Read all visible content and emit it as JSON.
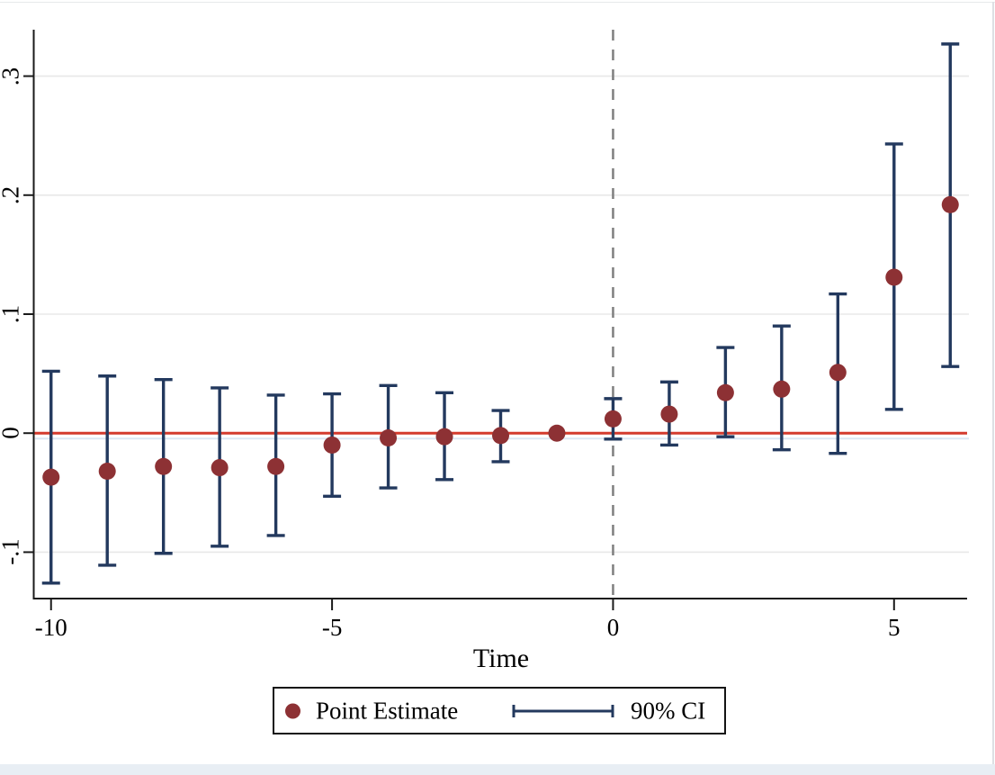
{
  "chart_data": {
    "type": "scatter",
    "subtype": "event-study-errorbar",
    "title": "",
    "xlabel": "Time",
    "ylabel": "",
    "xlim": [
      -10.3,
      6.3
    ],
    "ylim": [
      -0.139,
      0.339
    ],
    "x_ticks": [
      -10,
      -5,
      0,
      5
    ],
    "x_tick_labels": [
      "-10",
      "-5",
      "0",
      "5"
    ],
    "y_ticks": [
      -0.1,
      0,
      0.1,
      0.2,
      0.3
    ],
    "y_tick_labels": [
      "-.1",
      "0",
      ".1",
      ".2",
      ".3"
    ],
    "grid": true,
    "legend_position": "bottom-center",
    "reference_line_y": 0,
    "event_line_x": 0,
    "ci_level": "90%",
    "points": [
      {
        "x": -10,
        "estimate": -0.037,
        "ci_low": -0.126,
        "ci_high": 0.052
      },
      {
        "x": -9,
        "estimate": -0.032,
        "ci_low": -0.111,
        "ci_high": 0.048
      },
      {
        "x": -8,
        "estimate": -0.028,
        "ci_low": -0.101,
        "ci_high": 0.045
      },
      {
        "x": -7,
        "estimate": -0.029,
        "ci_low": -0.095,
        "ci_high": 0.038
      },
      {
        "x": -6,
        "estimate": -0.028,
        "ci_low": -0.086,
        "ci_high": 0.032
      },
      {
        "x": -5,
        "estimate": -0.01,
        "ci_low": -0.053,
        "ci_high": 0.033
      },
      {
        "x": -4,
        "estimate": -0.004,
        "ci_low": -0.046,
        "ci_high": 0.04
      },
      {
        "x": -3,
        "estimate": -0.003,
        "ci_low": -0.039,
        "ci_high": 0.034
      },
      {
        "x": -2,
        "estimate": -0.002,
        "ci_low": -0.024,
        "ci_high": 0.019
      },
      {
        "x": -1,
        "estimate": 0.0,
        "ci_low": null,
        "ci_high": null
      },
      {
        "x": 0,
        "estimate": 0.012,
        "ci_low": -0.005,
        "ci_high": 0.029
      },
      {
        "x": 1,
        "estimate": 0.016,
        "ci_low": -0.01,
        "ci_high": 0.043
      },
      {
        "x": 2,
        "estimate": 0.034,
        "ci_low": -0.003,
        "ci_high": 0.072
      },
      {
        "x": 3,
        "estimate": 0.037,
        "ci_low": -0.014,
        "ci_high": 0.09
      },
      {
        "x": 4,
        "estimate": 0.051,
        "ci_low": -0.017,
        "ci_high": 0.117
      },
      {
        "x": 5,
        "estimate": 0.131,
        "ci_low": 0.02,
        "ci_high": 0.243
      },
      {
        "x": 6,
        "estimate": 0.192,
        "ci_low": 0.056,
        "ci_high": 0.327
      }
    ],
    "legend": {
      "items": [
        {
          "marker": "dot",
          "label": "Point Estimate"
        },
        {
          "marker": "errorbar",
          "label": "90% CI"
        }
      ]
    },
    "colors": {
      "point": "#8d3134",
      "ci": "#23395e",
      "zero_line": "#d43b2d",
      "event_line": "#7f7f7f",
      "grid": "#e8e8e8",
      "grid_zero": "#dbe7f3",
      "axis": "#1a1a1a"
    }
  }
}
